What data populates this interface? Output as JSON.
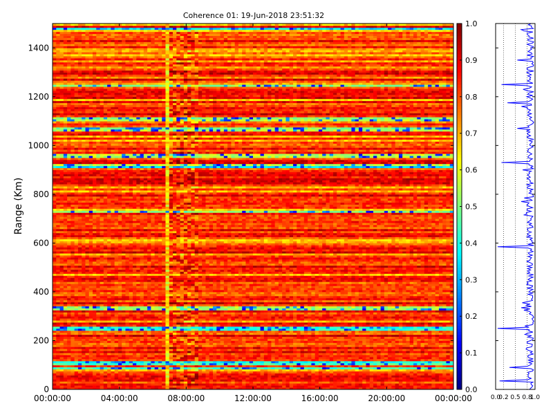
{
  "chart_data": [
    {
      "type": "heatmap",
      "title": "Coherence 01: 19-Jun-2018 23:51:32",
      "ylabel": "Range (Km)",
      "xlabel": "",
      "x_ticks": [
        "00:00:00",
        "04:00:00",
        "08:00:00",
        "12:00:00",
        "16:00:00",
        "20:00:00",
        "00:00:00"
      ],
      "x_range_hours": [
        0,
        24
      ],
      "y_ticks": [
        0,
        200,
        400,
        600,
        800,
        1000,
        1200,
        1400
      ],
      "ylim": [
        0,
        1500
      ],
      "colormap": "jet",
      "colorbar": {
        "range": [
          0,
          1
        ],
        "ticks": [
          "0.0",
          "0.1",
          "0.2",
          "0.3",
          "0.4",
          "0.5",
          "0.6",
          "0.7",
          "0.8",
          "0.9",
          "1.0"
        ]
      },
      "grid": false,
      "data_summary": {
        "typical_value": 0.85,
        "low_coherence_time_window_hours": [
          6.75,
          8.75
        ],
        "low_coherence_ranges_km": [
          80,
          105,
          250,
          335,
          730,
          915,
          960,
          1065,
          1105,
          1250,
          1475
        ],
        "minimum_value": 0.1
      }
    },
    {
      "type": "line",
      "xlim": [
        0,
        1
      ],
      "ylim": [
        0,
        1500
      ],
      "x_ticks": [
        "0.0",
        "0.2",
        "0.5",
        "0.8",
        "1.0"
      ],
      "y_ticks": [
        0,
        200,
        400,
        600,
        800,
        1000,
        1200,
        1400
      ],
      "grid": "vertical dotted",
      "color": "#0000ff",
      "profile_baseline": 0.88,
      "profile_dips": [
        {
          "range_km": 35,
          "value": 0.1
        },
        {
          "range_km": 92,
          "value": 0.35
        },
        {
          "range_km": 250,
          "value": 0.05
        },
        {
          "range_km": 335,
          "value": 0.65
        },
        {
          "range_km": 585,
          "value": 0.05
        },
        {
          "range_km": 770,
          "value": 0.65
        },
        {
          "range_km": 930,
          "value": 0.15
        },
        {
          "range_km": 1070,
          "value": 0.55
        },
        {
          "range_km": 1175,
          "value": 0.3
        },
        {
          "range_km": 1250,
          "value": 0.15
        },
        {
          "range_km": 1350,
          "value": 0.55
        },
        {
          "range_km": 1475,
          "value": 0.65
        }
      ]
    }
  ]
}
